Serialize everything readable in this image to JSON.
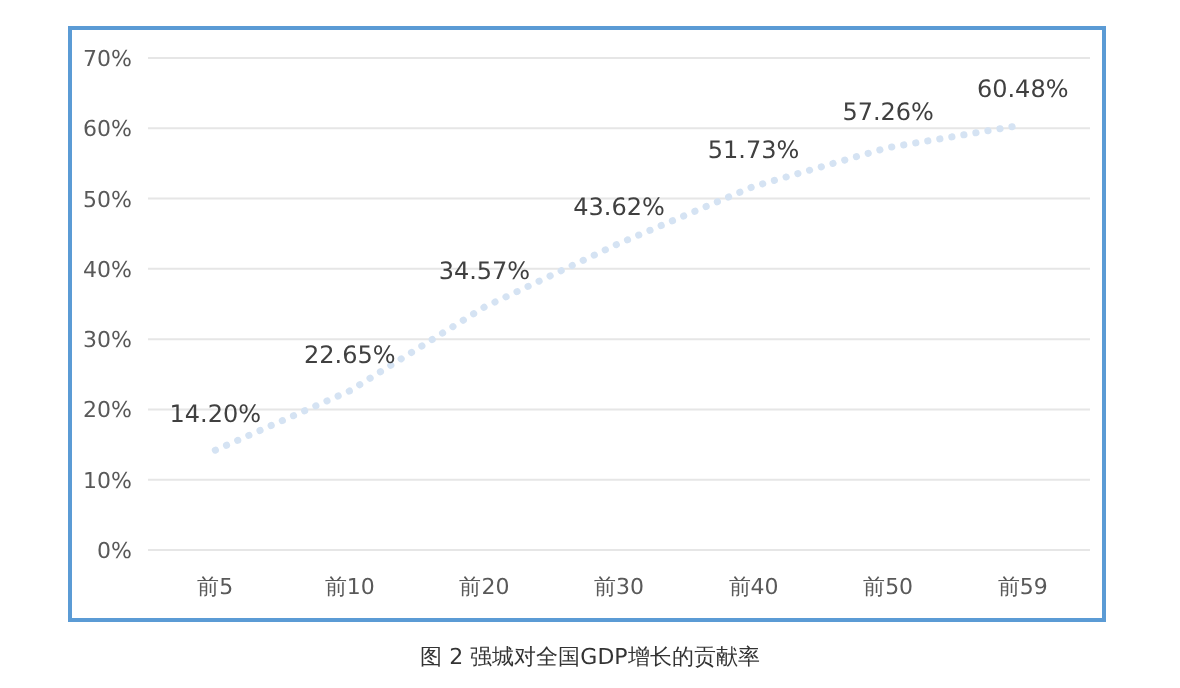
{
  "chart_data": {
    "type": "line",
    "categories": [
      "前5",
      "前10",
      "前20",
      "前30",
      "前40",
      "前50",
      "前59"
    ],
    "series": [
      {
        "color": "#d5e3f3",
        "values": [
          14.2,
          22.65,
          34.57,
          43.62,
          51.73,
          57.26,
          60.48
        ]
      }
    ],
    "value_labels": [
      "14.20%",
      "22.65%",
      "34.57%",
      "43.62%",
      "51.73%",
      "57.26%",
      "60.48%"
    ],
    "ylim": [
      0,
      70
    ],
    "yticks": [
      {
        "value": 0,
        "label": "0%"
      },
      {
        "value": 10,
        "label": "10%"
      },
      {
        "value": 20,
        "label": "20%"
      },
      {
        "value": 30,
        "label": "30%"
      },
      {
        "value": 40,
        "label": "40%"
      },
      {
        "value": 50,
        "label": "50%"
      },
      {
        "value": 60,
        "label": "60%"
      },
      {
        "value": 70,
        "label": "70%"
      }
    ],
    "grid": "y",
    "line_style": "dotted",
    "marker": "none",
    "annotations": [
      "图 2 强城对全国GDP增长的贡献率"
    ]
  }
}
